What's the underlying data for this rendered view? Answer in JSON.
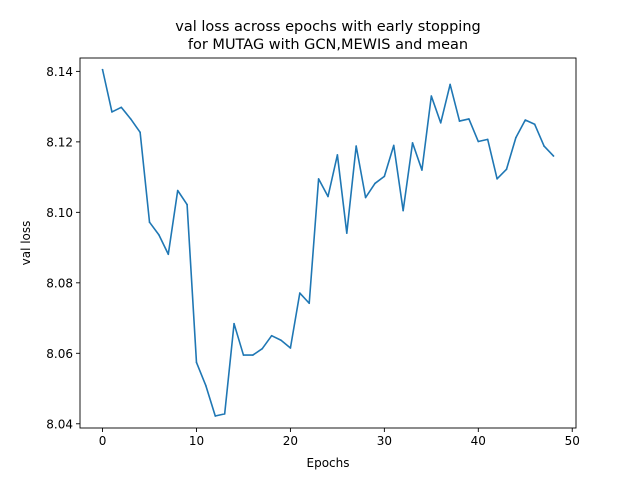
{
  "chart_data": {
    "type": "line",
    "title": "val loss across epochs with early stopping\nfor MUTAG with GCN,MEWIS and mean",
    "title_lines": [
      "val loss across epochs with early stopping",
      "for MUTAG with GCN,MEWIS and mean"
    ],
    "xlabel": "Epochs",
    "ylabel": "val loss",
    "xlim": [
      -2.4,
      50.4
    ],
    "ylim": [
      8.0388,
      8.1438
    ],
    "xticks": [
      0,
      10,
      20,
      30,
      40,
      50
    ],
    "xtick_labels": [
      "0",
      "10",
      "20",
      "30",
      "40",
      "50"
    ],
    "yticks": [
      8.04,
      8.06,
      8.08,
      8.1,
      8.12,
      8.14
    ],
    "ytick_labels": [
      "8.04",
      "8.06",
      "8.08",
      "8.10",
      "8.12",
      "8.14"
    ],
    "grid": false,
    "legend": "none",
    "line_color": "#1f77b4",
    "series": [
      {
        "x": [
          0,
          1,
          2,
          3,
          4,
          5,
          6,
          7,
          8,
          9,
          10,
          11,
          12,
          13,
          14,
          15,
          16,
          17,
          18,
          19,
          20,
          21,
          22,
          23,
          24,
          25,
          26,
          27,
          28,
          29,
          30,
          31,
          32,
          33,
          34,
          35,
          36,
          37,
          38,
          39,
          40,
          41,
          42,
          43,
          44,
          45,
          46,
          47,
          48
        ],
        "values": [
          8.1405,
          8.1285,
          8.1298,
          8.1265,
          8.1227,
          8.0972,
          8.0936,
          8.0881,
          8.1062,
          8.1022,
          8.0574,
          8.0508,
          8.0422,
          8.0428,
          8.0684,
          8.0595,
          8.0595,
          8.0613,
          8.065,
          8.0637,
          8.0615,
          8.0771,
          8.0742,
          8.1095,
          8.1045,
          8.1163,
          8.0941,
          8.1188,
          8.1042,
          8.1082,
          8.1102,
          8.119,
          8.1005,
          8.1197,
          8.112,
          8.133,
          8.1254,
          8.1363,
          8.1259,
          8.1265,
          8.1201,
          8.1207,
          8.1095,
          8.1122,
          8.1212,
          8.1262,
          8.125,
          8.1188,
          8.116
        ]
      }
    ]
  }
}
